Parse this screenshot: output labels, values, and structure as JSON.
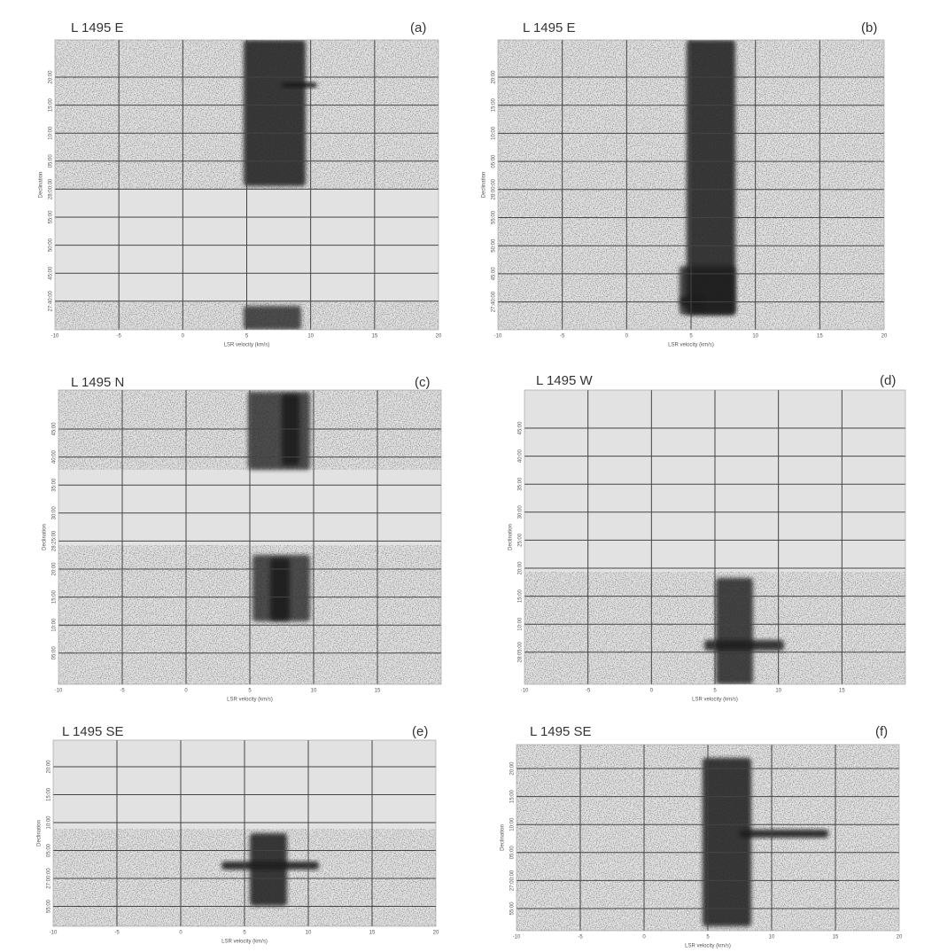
{
  "panels": [
    {
      "title": "L 1495 E",
      "label": "(a)",
      "x_axis": {
        "label": "LSR velocity (km/s)",
        "lim": [
          -10,
          20
        ],
        "ticks": [
          -10,
          -5,
          0,
          5,
          10,
          15,
          20
        ]
      },
      "y_axis": {
        "label": "Declination",
        "ticks": [
          "20:00",
          "15:00",
          "10:00",
          "05:00",
          "28:00:00",
          "55:00",
          "50:00",
          "45:00",
          "27:40:00"
        ]
      }
    },
    {
      "title": "L 1495 E",
      "label": "(b)",
      "x_axis": {
        "label": "LSR velocity (km/s)",
        "lim": [
          -10,
          20
        ],
        "ticks": [
          -10,
          -5,
          0,
          5,
          10,
          15,
          20
        ]
      },
      "y_axis": {
        "label": "Declination",
        "ticks": [
          "20:00",
          "15:00",
          "10:00",
          "05:00",
          "28:00:00",
          "55:00",
          "50:00",
          "45:00",
          "27:40:00"
        ]
      }
    },
    {
      "title": "L 1495 N",
      "label": "(c)",
      "x_axis": {
        "label": "LSR velocity (km/s)",
        "lim": [
          -10,
          20
        ],
        "ticks": [
          -10,
          -5,
          0,
          5,
          10,
          15
        ]
      },
      "y_axis": {
        "label": "Declination",
        "ticks": [
          "45:00",
          "40:00",
          "35:00",
          "30:00",
          "28:25:00",
          "20:00",
          "15:00",
          "10:00",
          "05:00"
        ]
      }
    },
    {
      "title": "L 1495 W",
      "label": "(d)",
      "x_axis": {
        "label": "LSR velocity (km/s)",
        "lim": [
          -10,
          20
        ],
        "ticks": [
          -10,
          -5,
          0,
          5,
          10,
          15
        ]
      },
      "y_axis": {
        "label": "Declination",
        "ticks": [
          "45:00",
          "40:00",
          "35:00",
          "30:00",
          "25:00",
          "20:00",
          "15:00",
          "10:00",
          "28:05:00"
        ]
      }
    },
    {
      "title": "L 1495 SE",
      "label": "(e)",
      "x_axis": {
        "label": "LSR velocity (km/s)",
        "lim": [
          -10,
          20
        ],
        "ticks": [
          -10,
          -5,
          0,
          5,
          10,
          15,
          20
        ]
      },
      "y_axis": {
        "label": "Declination",
        "ticks": [
          "20:00",
          "15:00",
          "10:00",
          "05:00",
          "27:00:00",
          "55:00"
        ]
      }
    },
    {
      "title": "L 1495 SE",
      "label": "(f)",
      "x_axis": {
        "label": "LSR velocity (km/s)",
        "lim": [
          -10,
          20
        ],
        "ticks": [
          -10,
          -5,
          0,
          5,
          10,
          15,
          20
        ]
      },
      "y_axis": {
        "label": "Declination",
        "ticks": [
          "20:00",
          "15:00",
          "10:00",
          "05:00",
          "27:00:00",
          "55:00"
        ]
      }
    }
  ]
}
